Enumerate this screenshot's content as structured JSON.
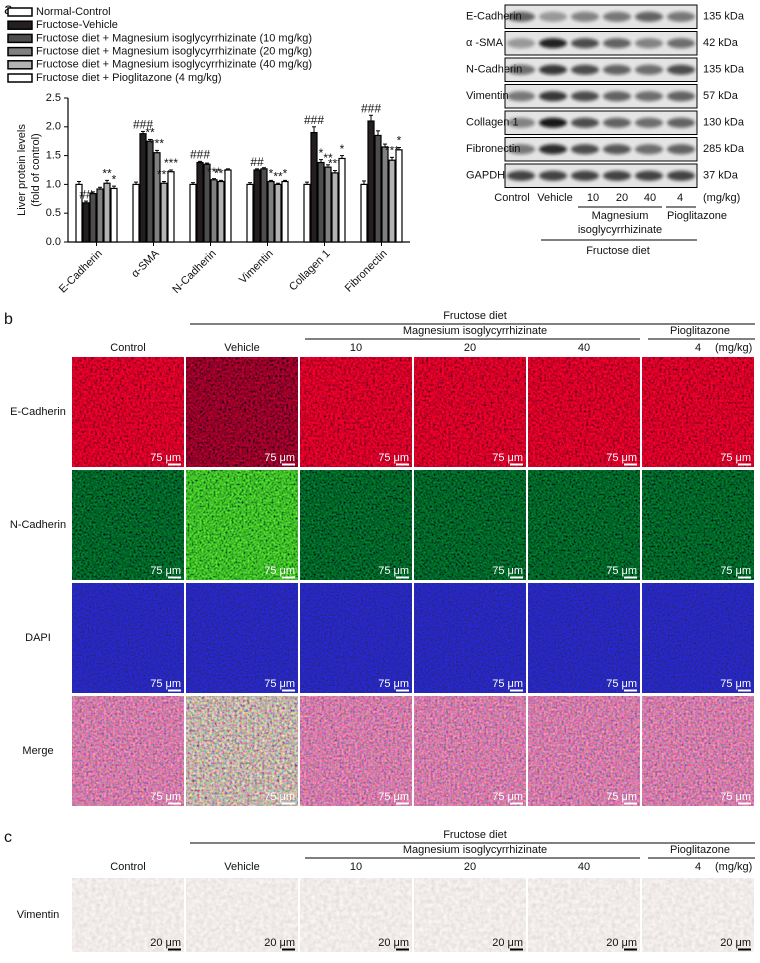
{
  "panel_labels": [
    "a",
    "b",
    "c"
  ],
  "chart_data": {
    "type": "bar",
    "ylabel": [
      "Liver protein levels",
      "(fold of control)"
    ],
    "categories": [
      "E-Cadherin",
      "α-SMA",
      "N-Cadherin",
      "Vimentin",
      "Collagen 1",
      "Fibronectin"
    ],
    "series": [
      {
        "name": "Normal-Control",
        "color": "#ffffff",
        "values": [
          1.0,
          1.0,
          1.0,
          1.0,
          1.0,
          1.0
        ],
        "errors": [
          0.05,
          0.04,
          0.03,
          0.03,
          0.04,
          0.06
        ],
        "marks": [
          null,
          null,
          null,
          null,
          null,
          null
        ]
      },
      {
        "name": "Fructose-Vehicle",
        "color": "#231f20",
        "values": [
          0.68,
          1.88,
          1.38,
          1.25,
          1.9,
          2.1
        ],
        "errors": [
          0.03,
          0.04,
          0.02,
          0.02,
          0.1,
          0.1
        ],
        "marks": [
          "##",
          "###",
          "###",
          "##",
          "###",
          "###"
        ]
      },
      {
        "name": "Fructose diet + Magnesium isoglycyrrhizinate (10 mg/kg)",
        "color": "#4d4d4d",
        "values": [
          0.84,
          1.75,
          1.35,
          1.27,
          1.38,
          1.85
        ],
        "errors": [
          0.03,
          0.03,
          0.02,
          0.02,
          0.05,
          0.08
        ],
        "marks": [
          null,
          "**",
          null,
          null,
          "*",
          null
        ]
      },
      {
        "name": "Fructose diet + Magnesium isoglycyrrhizinate (20 mg/kg)",
        "color": "#808080",
        "values": [
          0.92,
          1.55,
          1.08,
          1.05,
          1.3,
          1.65
        ],
        "errors": [
          0.03,
          0.04,
          0.02,
          0.02,
          0.04,
          0.05
        ],
        "marks": [
          null,
          "***",
          "***",
          "*",
          "**",
          null
        ]
      },
      {
        "name": "Fructose diet + Magnesium isoglycyrrhizinate (40 mg/kg)",
        "color": "#b3b3b3",
        "values": [
          1.02,
          1.02,
          1.05,
          1.0,
          1.2,
          1.42
        ],
        "errors": [
          0.05,
          0.03,
          0.02,
          0.02,
          0.04,
          0.05
        ],
        "marks": [
          "**",
          "***",
          "***",
          "**",
          "***",
          "***"
        ]
      },
      {
        "name": "Fructose diet + Pioglitazone (4 mg/kg)",
        "color": "#ffffff",
        "values": [
          0.93,
          1.22,
          1.25,
          1.05,
          1.45,
          1.6
        ],
        "errors": [
          0.04,
          0.03,
          0.02,
          0.02,
          0.05,
          0.04
        ],
        "marks": [
          "*",
          "***",
          null,
          "*",
          "*",
          "*"
        ]
      }
    ],
    "ylim": [
      0,
      2.5
    ],
    "yticks": [
      {
        "value": 0,
        "label": "0.0"
      },
      {
        "value": 0.5,
        "label": "0.5"
      },
      {
        "value": 1,
        "label": "1.0"
      },
      {
        "value": 1.5,
        "label": "1.5"
      },
      {
        "value": 2,
        "label": "2.0"
      },
      {
        "value": 2.5,
        "label": "2.5"
      }
    ],
    "legend": "top-left"
  },
  "blot": {
    "rows": [
      {
        "protein": "E-Cadherin",
        "size": "135 kDa"
      },
      {
        "protein": "α -SMA",
        "size": "42 kDa"
      },
      {
        "protein": "N-Cadherin",
        "size": "135 kDa"
      },
      {
        "protein": "Vimentin",
        "size": "57 kDa"
      },
      {
        "protein": "Collagen 1",
        "size": "130 kDa"
      },
      {
        "protein": "Fibronectin",
        "size": "285 kDa"
      },
      {
        "protein": "GAPDH",
        "size": "37 kDa"
      }
    ],
    "lanes": [
      "Control",
      "Vehicle",
      "10",
      "20",
      "40",
      "4"
    ],
    "unit": "(mg/kg)",
    "treatment_lines": [
      "Magnesium",
      "isoglycyrrhizinate"
    ],
    "comparator": "Pioglitazone",
    "diet": "Fructose diet"
  },
  "if_panel": {
    "diet": "Fructose diet",
    "treatment": "Magnesium isoglycyrrhizinate",
    "comparator": "Pioglitazone",
    "columns": [
      "Control",
      "Vehicle",
      "10",
      "20",
      "40",
      "4"
    ],
    "unit": "(mg/kg)",
    "rows": [
      "E-Cadherin",
      "N-Cadherin",
      "DAPI",
      "Merge"
    ],
    "scale_bar": "75 μm"
  },
  "ihc_panel": {
    "diet": "Fructose diet",
    "treatment": "Magnesium isoglycyrrhizinate",
    "comparator": "Pioglitazone",
    "columns": [
      "Control",
      "Vehicle",
      "10",
      "20",
      "40",
      "4"
    ],
    "unit": "(mg/kg)",
    "rows": [
      "Vimentin"
    ],
    "scale_bar": "20 μm"
  }
}
